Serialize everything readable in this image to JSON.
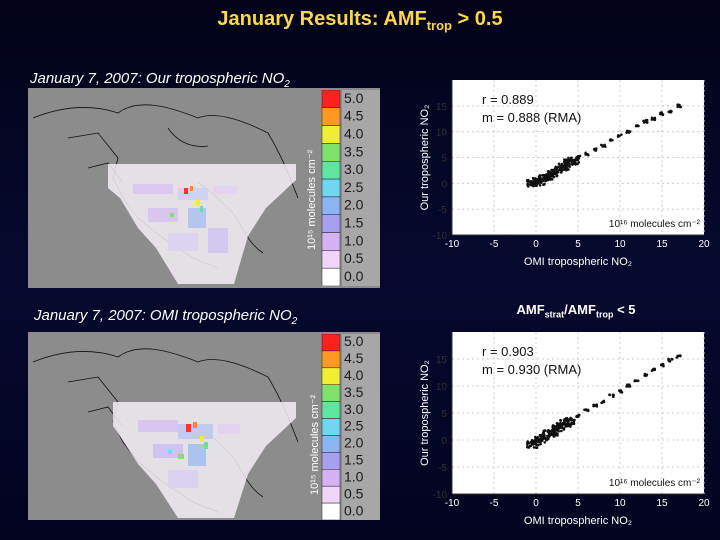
{
  "title": {
    "prefix": "January Results: AMF",
    "sub": "trop",
    "suffix": " > 0.5"
  },
  "colors": {
    "title": "#ffd84a",
    "background": "#05072a",
    "map_bg": "#8c8c8c"
  },
  "top_map": {
    "title_prefix": "January 7, 2007: Our tropospheric NO",
    "title_sub": "2",
    "colorbar_label": "10¹⁵ molecules cm⁻²"
  },
  "bottom_map": {
    "title_prefix": "January 7, 2007: OMI tropospheric NO",
    "title_sub": "2",
    "colorbar_label": "10¹⁵ molecules cm⁻²"
  },
  "colorbar": {
    "ticks": [
      "5.0",
      "4.5",
      "4.0",
      "3.5",
      "3.0",
      "2.5",
      "2.0",
      "1.5",
      "1.0",
      "0.5",
      "0.0"
    ],
    "colors": [
      "#ff2020",
      "#ff9a20",
      "#f0ee30",
      "#7fe36b",
      "#5fe5a0",
      "#6fd8f0",
      "#8cb4f2",
      "#a7a0f0",
      "#d3b3f3",
      "#efd6f8",
      "#ffffff"
    ]
  },
  "ratio_heading": {
    "prefix": "AMF",
    "sub1": "strat",
    "middle": "/AMF",
    "sub2": "trop",
    "suffix": " < 5"
  },
  "chart_data": [
    {
      "type": "scatter",
      "title": "",
      "xlabel": "OMI tropospheric NO₂",
      "ylabel": "Our tropospheric NO₂",
      "units_label": "10¹⁶ molecules cm⁻²",
      "xlim": [
        -10,
        20
      ],
      "ylim": [
        -10,
        20
      ],
      "x_ticks": [
        "-10",
        "-5",
        "0",
        "5",
        "10",
        "15",
        "20"
      ],
      "y_ticks": [
        "-10",
        "-5",
        "0",
        "5",
        "10",
        "15"
      ],
      "x_tick_values": [
        -10,
        -5,
        0,
        5,
        10,
        15,
        20
      ],
      "y_tick_values": [
        -10,
        -5,
        0,
        5,
        10,
        15
      ],
      "annotations": [
        "r = 0.889",
        "m = 0.888 (RMA)"
      ],
      "r": 0.889,
      "slope_rma": 0.888,
      "points": [
        [
          -0.5,
          0
        ],
        [
          0,
          0.5
        ],
        [
          0.5,
          0.2
        ],
        [
          1,
          1
        ],
        [
          1.5,
          1.2
        ],
        [
          2,
          2
        ],
        [
          2.5,
          2.3
        ],
        [
          3,
          3.2
        ],
        [
          3.5,
          3
        ],
        [
          4,
          4.2
        ],
        [
          4.5,
          4.3
        ],
        [
          5,
          5.1
        ],
        [
          6,
          5.7
        ],
        [
          7,
          6.5
        ],
        [
          8,
          7.3
        ],
        [
          9,
          8.5
        ],
        [
          10,
          9.2
        ],
        [
          11,
          10
        ],
        [
          12,
          11
        ],
        [
          13,
          12
        ],
        [
          14,
          12.5
        ],
        [
          15,
          13.5
        ],
        [
          16,
          14
        ],
        [
          17,
          15
        ]
      ]
    },
    {
      "type": "scatter",
      "title": "",
      "xlabel": "OMI tropospheric NO₂",
      "ylabel": "Our tropospheric NO₂",
      "units_label": "10¹⁶ molecules cm⁻²",
      "xlim": [
        -10,
        20
      ],
      "ylim": [
        -10,
        20
      ],
      "x_ticks": [
        "-10",
        "-5",
        "0",
        "5",
        "10",
        "15",
        "20"
      ],
      "y_ticks": [
        "-10",
        "-5",
        "0",
        "5",
        "10",
        "15"
      ],
      "x_tick_values": [
        -10,
        -5,
        0,
        5,
        10,
        15,
        20
      ],
      "y_tick_values": [
        -10,
        -5,
        0,
        5,
        10,
        15
      ],
      "annotations": [
        "r = 0.903",
        "m = 0.930 (RMA)"
      ],
      "r": 0.903,
      "slope_rma": 0.93,
      "points": [
        [
          -0.5,
          -0.8
        ],
        [
          0,
          -0.3
        ],
        [
          0.5,
          0.2
        ],
        [
          1,
          0.6
        ],
        [
          1.5,
          1.2
        ],
        [
          2,
          1.5
        ],
        [
          2.5,
          2.1
        ],
        [
          3,
          2.6
        ],
        [
          3.5,
          3.1
        ],
        [
          4,
          3.5
        ],
        [
          5,
          4.4
        ],
        [
          6,
          5.4
        ],
        [
          7,
          6.3
        ],
        [
          8,
          7.1
        ],
        [
          9,
          8.2
        ],
        [
          10,
          9
        ],
        [
          11,
          10.1
        ],
        [
          12,
          11
        ],
        [
          13,
          12
        ],
        [
          14,
          13
        ],
        [
          15,
          13.8
        ],
        [
          16,
          14.8
        ],
        [
          17,
          15.5
        ]
      ]
    }
  ]
}
